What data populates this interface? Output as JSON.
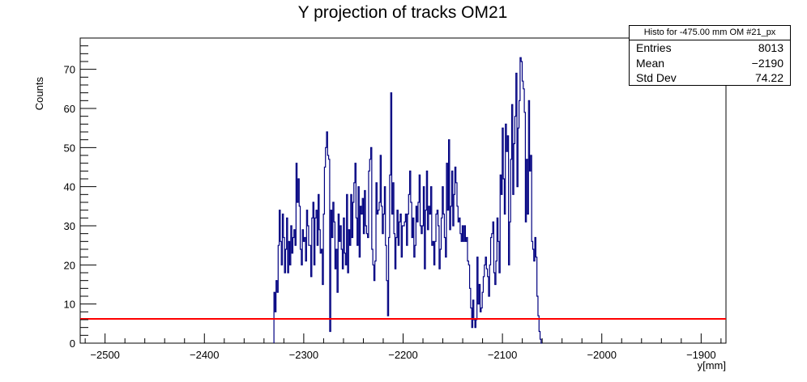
{
  "chart_data": {
    "type": "histogram",
    "title": "Y projection of tracks OM21",
    "xlabel": "y[mm]",
    "ylabel": "Counts",
    "xlim": [
      -2525,
      -1875
    ],
    "ylim": [
      0,
      78
    ],
    "x_ticks": [
      -2500,
      -2400,
      -2300,
      -2200,
      -2100,
      -2000,
      -1900
    ],
    "y_ticks": [
      0,
      10,
      20,
      30,
      40,
      50,
      60,
      70
    ],
    "line_color": "#000080",
    "threshold": {
      "y": 6.2,
      "color": "#ff0000"
    },
    "bin_edges": [
      -2330,
      -2060
    ],
    "values": [
      13,
      8,
      16,
      13,
      25,
      34,
      26,
      20,
      33,
      27,
      18,
      24,
      32,
      18,
      26,
      20,
      30,
      23,
      27,
      29,
      25,
      46,
      36,
      42,
      35,
      24,
      20,
      29,
      26,
      27,
      21,
      34,
      30,
      25,
      25,
      17,
      32,
      36,
      20,
      32,
      34,
      25,
      38,
      29,
      23,
      24,
      15,
      33,
      45,
      50,
      54,
      48,
      47,
      3,
      34,
      27,
      36,
      31,
      19,
      24,
      13,
      33,
      26,
      30,
      24,
      19,
      32,
      23,
      20,
      38,
      18,
      29,
      25,
      38,
      27,
      36,
      41,
      46,
      32,
      25,
      40,
      22,
      35,
      33,
      37,
      28,
      39,
      30,
      28,
      27,
      44,
      47,
      50,
      24,
      20,
      16,
      21,
      41,
      33,
      34,
      36,
      48,
      35,
      28,
      33,
      40,
      25,
      16,
      7,
      27,
      43,
      64,
      33,
      41,
      28,
      19,
      27,
      34,
      25,
      31,
      33,
      22,
      30,
      30,
      31,
      33,
      25,
      33,
      38,
      44,
      36,
      27,
      32,
      22,
      25,
      35,
      31,
      36,
      43,
      30,
      28,
      30,
      40,
      19,
      34,
      44,
      29,
      35,
      33,
      40,
      25,
      26,
      20,
      26,
      33,
      34,
      30,
      19,
      24,
      32,
      40,
      33,
      27,
      22,
      46,
      34,
      52,
      29,
      35,
      44,
      30,
      38,
      45,
      41,
      35,
      31,
      32,
      28,
      26,
      30,
      26,
      30,
      26,
      27,
      21,
      20,
      14,
      9,
      4,
      11,
      6,
      4,
      6,
      22,
      10,
      15,
      8,
      9,
      13,
      17,
      20,
      22,
      19,
      17,
      12,
      20,
      27,
      28,
      31,
      18,
      15,
      21,
      32,
      26,
      18,
      43,
      38,
      55,
      42,
      33,
      56,
      49,
      53,
      20,
      31,
      47,
      61,
      38,
      51,
      58,
      69,
      40,
      55,
      62,
      73,
      72,
      67,
      65,
      59,
      31,
      47,
      33,
      62,
      44,
      48,
      26,
      24,
      21,
      27,
      22,
      12,
      7,
      3,
      1,
      0
    ],
    "stats": {
      "title": "Histo for -475.00 mm OM #21_px",
      "rows": [
        {
          "label": "Entries",
          "value": "8013"
        },
        {
          "label": "Mean",
          "value": "−2190"
        },
        {
          "label": "Std Dev",
          "value": "74.22"
        }
      ]
    }
  }
}
